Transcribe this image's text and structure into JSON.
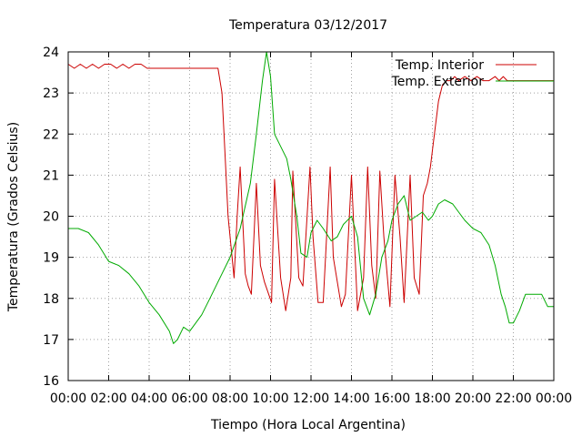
{
  "chart_data": {
    "type": "line",
    "title": "Temperatura 03/12/2017",
    "xlabel": "Tiempo (Hora Local Argentina)",
    "ylabel": "Temperatura (Grados Celsius)",
    "xlim": [
      0,
      24
    ],
    "ylim": [
      16,
      24
    ],
    "x_ticks": [
      "00:00",
      "02:00",
      "04:00",
      "06:00",
      "08:00",
      "10:00",
      "12:00",
      "14:00",
      "16:00",
      "18:00",
      "20:00",
      "22:00",
      "00:00"
    ],
    "y_ticks": [
      "16",
      "17",
      "18",
      "19",
      "20",
      "21",
      "22",
      "23",
      "24"
    ],
    "grid": true,
    "legend_position": "top-right",
    "x_unit": "hours",
    "series": [
      {
        "name": "Temp. Interior",
        "color": "#cc0000",
        "x": [
          0,
          0.3,
          0.6,
          0.9,
          1.2,
          1.5,
          1.8,
          2.1,
          2.4,
          2.7,
          3.0,
          3.3,
          3.6,
          3.9,
          4.2,
          5.0,
          6.0,
          7.0,
          7.4,
          7.6,
          7.8,
          7.9,
          8.0,
          8.1,
          8.2,
          8.35,
          8.5,
          8.75,
          8.9,
          9.05,
          9.3,
          9.5,
          9.7,
          10.05,
          10.2,
          10.5,
          10.75,
          11.0,
          11.1,
          11.4,
          11.6,
          11.95,
          12.1,
          12.35,
          12.6,
          12.95,
          13.1,
          13.5,
          13.7,
          14.0,
          14.3,
          14.6,
          14.8,
          15.0,
          15.2,
          15.4,
          15.6,
          15.9,
          16.15,
          16.4,
          16.6,
          16.9,
          17.1,
          17.35,
          17.55,
          17.75,
          17.9,
          18.1,
          18.3,
          18.5,
          18.7,
          18.9,
          19.1,
          19.3,
          19.6,
          19.9,
          20.2,
          20.5,
          20.8,
          21.1,
          21.3,
          21.5,
          21.7,
          21.9,
          22.2,
          22.5,
          23.0,
          23.5,
          24.0
        ],
        "values": [
          23.7,
          23.6,
          23.7,
          23.6,
          23.7,
          23.6,
          23.7,
          23.7,
          23.6,
          23.7,
          23.6,
          23.7,
          23.7,
          23.6,
          23.6,
          23.6,
          23.6,
          23.6,
          23.6,
          23.0,
          21.0,
          20.0,
          19.5,
          19.0,
          18.5,
          20.0,
          21.2,
          18.6,
          18.3,
          18.1,
          20.8,
          18.8,
          18.4,
          17.9,
          20.9,
          18.5,
          17.7,
          18.5,
          21.1,
          18.5,
          18.3,
          21.2,
          19.5,
          17.9,
          17.9,
          21.2,
          19.0,
          17.8,
          18.1,
          21.0,
          17.7,
          18.5,
          21.2,
          18.8,
          18.0,
          21.1,
          19.5,
          17.8,
          21.0,
          19.5,
          17.9,
          21.0,
          18.5,
          18.1,
          20.5,
          20.8,
          21.2,
          22.0,
          22.8,
          23.2,
          23.3,
          23.3,
          23.4,
          23.3,
          23.4,
          23.3,
          23.4,
          23.3,
          23.3,
          23.4,
          23.3,
          23.4,
          23.3,
          23.3,
          23.3,
          23.3,
          23.3,
          23.3,
          23.3
        ],
        "x_data_only": true
      },
      {
        "name": "Temp. Exterior",
        "color": "#00aa00",
        "x": [
          0,
          0.5,
          1.0,
          1.5,
          2.0,
          2.5,
          3.0,
          3.5,
          4.0,
          4.5,
          5.0,
          5.2,
          5.4,
          5.7,
          6.0,
          6.3,
          6.6,
          7.0,
          7.5,
          8.0,
          8.5,
          9.0,
          9.3,
          9.6,
          9.8,
          10.0,
          10.2,
          10.5,
          10.8,
          11.0,
          11.3,
          11.5,
          11.8,
          12.0,
          12.3,
          12.6,
          13.0,
          13.3,
          13.6,
          14.0,
          14.3,
          14.6,
          14.9,
          15.2,
          15.5,
          15.8,
          16.0,
          16.3,
          16.6,
          16.9,
          17.2,
          17.5,
          17.8,
          18.0,
          18.3,
          18.6,
          19.0,
          19.3,
          19.6,
          20.0,
          20.4,
          20.8,
          21.1,
          21.4,
          21.6,
          21.8,
          22.0,
          22.3,
          22.6,
          23.0,
          23.4,
          23.7,
          24.0
        ],
        "values": [
          19.7,
          19.7,
          19.6,
          19.3,
          18.9,
          18.8,
          18.6,
          18.3,
          17.9,
          17.6,
          17.2,
          16.9,
          17.0,
          17.3,
          17.2,
          17.4,
          17.6,
          18.0,
          18.5,
          19.0,
          19.7,
          20.8,
          22.0,
          23.3,
          24.0,
          23.4,
          22.0,
          21.7,
          21.4,
          20.9,
          20.0,
          19.1,
          19.0,
          19.6,
          19.9,
          19.7,
          19.4,
          19.5,
          19.8,
          20.0,
          19.5,
          18.0,
          17.6,
          18.1,
          19.0,
          19.4,
          19.9,
          20.3,
          20.5,
          19.9,
          20.0,
          20.1,
          19.9,
          20.0,
          20.3,
          20.4,
          20.3,
          20.1,
          19.9,
          19.7,
          19.6,
          19.3,
          18.8,
          18.1,
          17.8,
          17.4,
          17.4,
          17.7,
          18.1,
          18.1,
          18.1,
          17.8,
          17.8
        ]
      }
    ]
  }
}
